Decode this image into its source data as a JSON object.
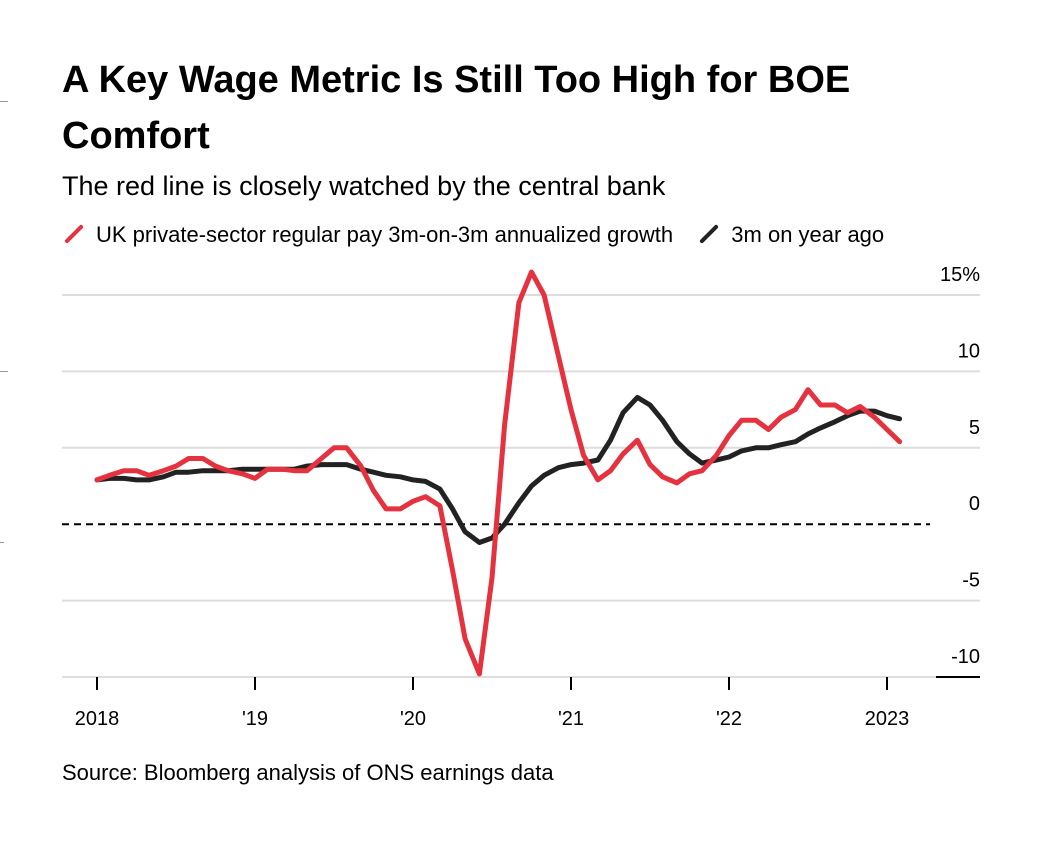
{
  "chart_data": {
    "type": "line",
    "title": "A Key Wage Metric Is Still Too High for BOE Comfort",
    "subtitle": "The red line is closely watched by the central bank",
    "source": "Source: Bloomberg analysis of ONS earnings data",
    "ylim": [
      -11,
      17
    ],
    "xlim": [
      2017.95,
      2023.3
    ],
    "y_ticks": [
      {
        "value": 15,
        "label": "15%"
      },
      {
        "value": 10,
        "label": "10"
      },
      {
        "value": 5,
        "label": "5"
      },
      {
        "value": 0,
        "label": "0"
      },
      {
        "value": -5,
        "label": "-5"
      },
      {
        "value": -10,
        "label": "-10"
      }
    ],
    "x_ticks": [
      {
        "value": 2018,
        "label": "2018"
      },
      {
        "value": 2019,
        "label": "'19"
      },
      {
        "value": 2020,
        "label": "'20"
      },
      {
        "value": 2021,
        "label": "'21"
      },
      {
        "value": 2022,
        "label": "'22"
      },
      {
        "value": 2023,
        "label": "2023"
      }
    ],
    "zero_line": "dashed",
    "colors": {
      "red": "#e5323e",
      "black": "#222222",
      "grid": "#dddddd",
      "zero": "#000000"
    },
    "series": [
      {
        "name": "UK private-sector regular pay 3m-on-3m annualized growth",
        "color": "#e5323e",
        "x": [
          2018.0,
          2018.08,
          2018.17,
          2018.25,
          2018.33,
          2018.42,
          2018.5,
          2018.58,
          2018.67,
          2018.75,
          2018.83,
          2018.92,
          2019.0,
          2019.08,
          2019.17,
          2019.25,
          2019.33,
          2019.42,
          2019.5,
          2019.58,
          2019.67,
          2019.75,
          2019.83,
          2019.92,
          2020.0,
          2020.08,
          2020.17,
          2020.25,
          2020.33,
          2020.42,
          2020.5,
          2020.58,
          2020.67,
          2020.75,
          2020.83,
          2020.92,
          2021.0,
          2021.08,
          2021.17,
          2021.25,
          2021.33,
          2021.42,
          2021.5,
          2021.58,
          2021.67,
          2021.75,
          2021.83,
          2021.92,
          2022.0,
          2022.08,
          2022.17,
          2022.25,
          2022.33,
          2022.42,
          2022.5,
          2022.58,
          2022.67,
          2022.75,
          2022.83,
          2022.92,
          2023.0,
          2023.08
        ],
        "values": [
          2.9,
          3.2,
          3.5,
          3.5,
          3.2,
          3.5,
          3.8,
          4.3,
          4.3,
          3.8,
          3.5,
          3.3,
          3.0,
          3.6,
          3.6,
          3.5,
          3.5,
          4.3,
          5.0,
          5.0,
          3.8,
          2.2,
          1.0,
          1.0,
          1.5,
          1.8,
          1.2,
          -3.0,
          -7.5,
          -9.8,
          -3.5,
          6.5,
          14.5,
          16.5,
          15.0,
          11.0,
          7.5,
          4.5,
          2.9,
          3.5,
          4.6,
          5.5,
          3.9,
          3.1,
          2.7,
          3.3,
          3.5,
          4.5,
          5.8,
          6.8,
          6.8,
          6.2,
          7.0,
          7.5,
          8.8,
          7.8,
          7.8,
          7.3,
          7.7,
          7.0,
          6.2,
          5.4
        ]
      },
      {
        "name": "3m on year ago",
        "color": "#222222",
        "x": [
          2018.0,
          2018.08,
          2018.17,
          2018.25,
          2018.33,
          2018.42,
          2018.5,
          2018.58,
          2018.67,
          2018.75,
          2018.83,
          2018.92,
          2019.0,
          2019.08,
          2019.17,
          2019.25,
          2019.33,
          2019.42,
          2019.5,
          2019.58,
          2019.67,
          2019.75,
          2019.83,
          2019.92,
          2020.0,
          2020.08,
          2020.17,
          2020.25,
          2020.33,
          2020.42,
          2020.5,
          2020.58,
          2020.67,
          2020.75,
          2020.83,
          2020.92,
          2021.0,
          2021.08,
          2021.17,
          2021.25,
          2021.33,
          2021.42,
          2021.5,
          2021.58,
          2021.67,
          2021.75,
          2021.83,
          2021.92,
          2022.0,
          2022.08,
          2022.17,
          2022.25,
          2022.33,
          2022.42,
          2022.5,
          2022.58,
          2022.67,
          2022.75,
          2022.83,
          2022.92,
          2023.0,
          2023.08
        ],
        "values": [
          2.9,
          3.0,
          3.0,
          2.9,
          2.9,
          3.1,
          3.4,
          3.4,
          3.5,
          3.5,
          3.5,
          3.6,
          3.6,
          3.6,
          3.6,
          3.6,
          3.8,
          3.9,
          3.9,
          3.9,
          3.6,
          3.4,
          3.2,
          3.1,
          2.9,
          2.8,
          2.3,
          1.0,
          -0.5,
          -1.2,
          -0.9,
          0.0,
          1.4,
          2.5,
          3.2,
          3.7,
          3.9,
          4.0,
          4.2,
          5.5,
          7.3,
          8.3,
          7.8,
          6.8,
          5.4,
          4.6,
          4.0,
          4.2,
          4.4,
          4.8,
          5.0,
          5.0,
          5.2,
          5.4,
          5.9,
          6.3,
          6.7,
          7.1,
          7.4,
          7.4,
          7.1,
          6.9
        ]
      }
    ]
  }
}
